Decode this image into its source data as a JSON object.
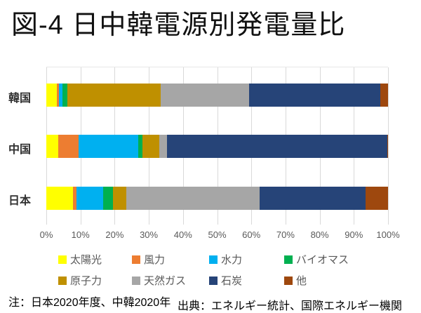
{
  "title": "図-4 日中韓電源別発電量比",
  "note": "注：日本2020年度、中韓2020年",
  "source": "出典：エネルギー統計、国際エネルギー機関",
  "colors": {
    "gridline": "#d9d9d9",
    "axis_text": "#595959",
    "legend_text": "#595959",
    "category_text": "#303030",
    "title_text": "#111111"
  },
  "chart_data": {
    "type": "bar",
    "orientation": "horizontal",
    "stacked": true,
    "unit": "%",
    "categories": [
      "韓国",
      "中国",
      "日本"
    ],
    "series": [
      {
        "name": "太陽光",
        "color": "#FFFF00",
        "values": [
          3.0,
          3.5,
          7.9
        ]
      },
      {
        "name": "風力",
        "color": "#ED7D31",
        "values": [
          0.7,
          6.0,
          0.9
        ]
      },
      {
        "name": "水力",
        "color": "#00B0F0",
        "values": [
          1.1,
          17.3,
          7.8
        ]
      },
      {
        "name": "バイオマス",
        "color": "#00B050",
        "values": [
          1.4,
          1.4,
          2.9
        ]
      },
      {
        "name": "原子力",
        "color": "#BF9000",
        "values": [
          27.3,
          4.8,
          3.9
        ]
      },
      {
        "name": "天然ガス",
        "color": "#A6A6A6",
        "values": [
          25.8,
          2.4,
          39.0
        ]
      },
      {
        "name": "石炭",
        "color": "#264478",
        "values": [
          38.5,
          64.3,
          31.0
        ]
      },
      {
        "name": "他",
        "color": "#9E480E",
        "values": [
          2.2,
          0.3,
          6.6
        ]
      }
    ],
    "x_ticks": [
      "0%",
      "10%",
      "20%",
      "30%",
      "40%",
      "50%",
      "60%",
      "70%",
      "80%",
      "90%",
      "100%"
    ],
    "xlim": [
      0,
      100
    ],
    "grid": "vertical",
    "legend_position": "bottom",
    "legend_rows": 2
  },
  "layout": {
    "bar_tops": [
      23,
      96,
      170
    ],
    "label_tops": [
      126,
      199,
      272
    ]
  }
}
